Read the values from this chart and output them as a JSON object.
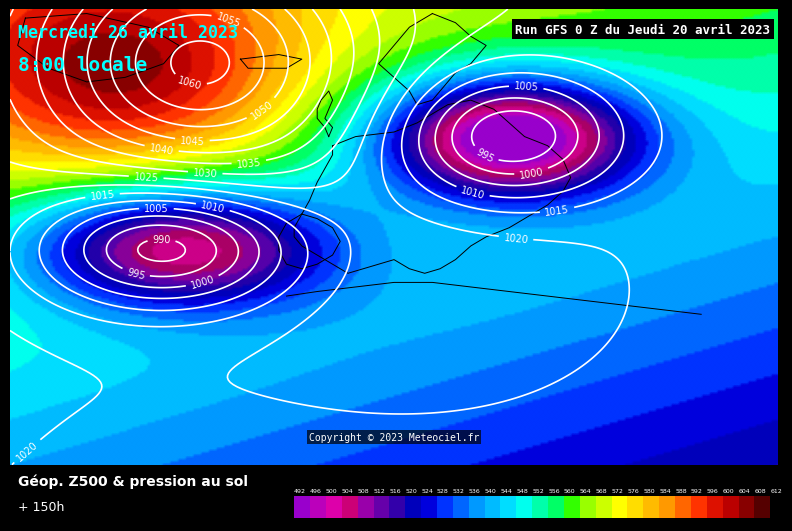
{
  "title_date": "Mercredi 26 avril 2023",
  "title_time": "8:00 locale",
  "run_info": "Run GFS 0 Z du Jeudi 20 avril 2023",
  "lead_time": "+ 150h",
  "var_label": "Géop. Z500 & pression au sol",
  "copyright": "Copyright © 2023 Meteociel.fr",
  "colorbar_levels": [
    492,
    496,
    500,
    504,
    508,
    512,
    516,
    520,
    524,
    528,
    532,
    536,
    540,
    544,
    548,
    552,
    556,
    560,
    564,
    568,
    572,
    576,
    580,
    584,
    588,
    592,
    596,
    600,
    604,
    608,
    612
  ],
  "colorbar_colors": [
    "#9900CC",
    "#BB00BB",
    "#DD00AA",
    "#CC0077",
    "#9900AA",
    "#6600AA",
    "#3300AA",
    "#0000BB",
    "#0000DD",
    "#0033FF",
    "#0066FF",
    "#0099FF",
    "#00BBFF",
    "#00DDFF",
    "#00FFEE",
    "#00FFAA",
    "#00FF66",
    "#33FF00",
    "#99FF00",
    "#CCFF00",
    "#FFFF00",
    "#FFDD00",
    "#FFBB00",
    "#FF9900",
    "#FF6600",
    "#FF3300",
    "#DD1100",
    "#BB0000",
    "#880000",
    "#550000"
  ],
  "bg_color": "#000000",
  "map_bg": "#1a1a2e"
}
